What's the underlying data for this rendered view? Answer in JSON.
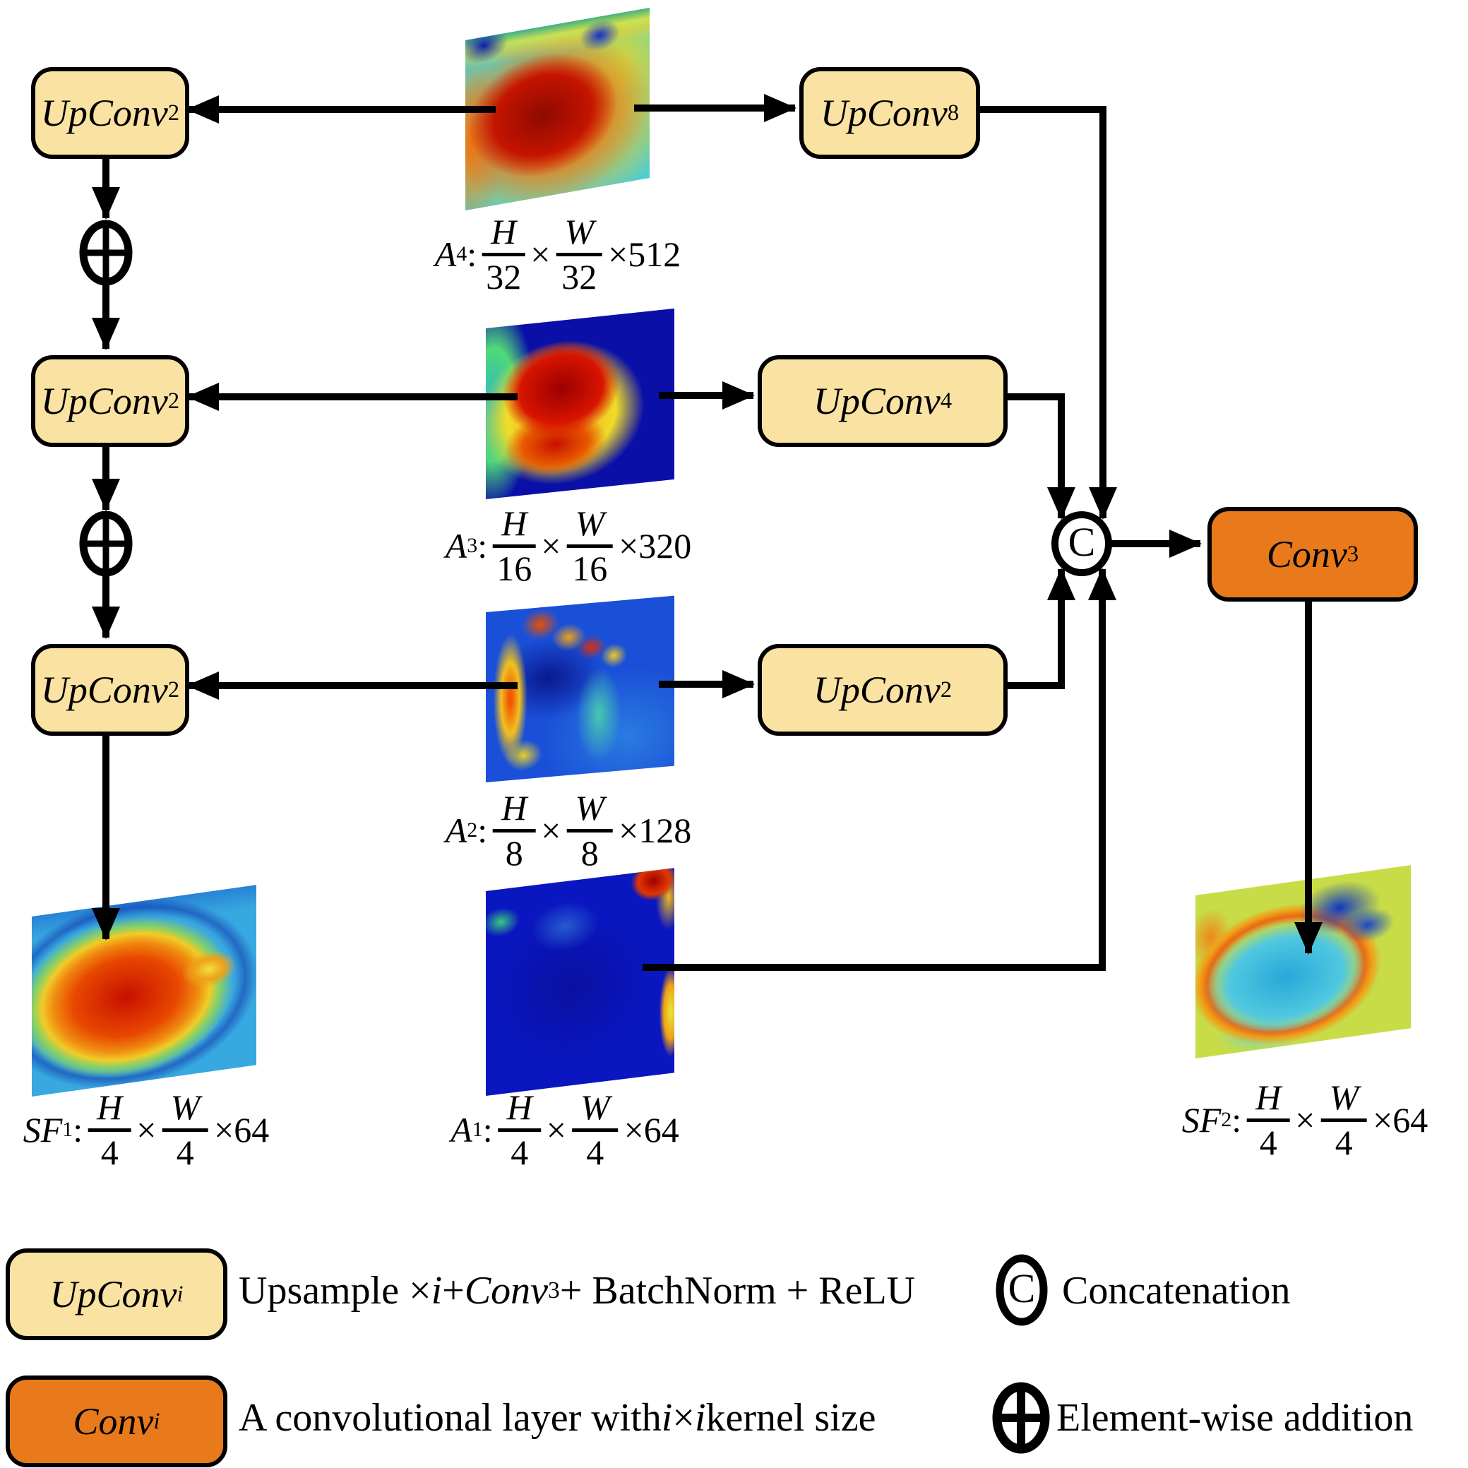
{
  "colors": {
    "node_fill": "#FAE2A2",
    "conv_fill": "#E87A1C",
    "line": "#000000",
    "bg": "#FFFFFF"
  },
  "nodes": {
    "upconv2": {
      "segments": [
        {
          "t": "it",
          "v": "UpConv"
        },
        {
          "t": "sub",
          "v": "2"
        }
      ]
    },
    "upconv4": {
      "segments": [
        {
          "t": "it",
          "v": "UpConv"
        },
        {
          "t": "sub",
          "v": "4"
        }
      ]
    },
    "upconv8": {
      "segments": [
        {
          "t": "it",
          "v": "UpConv"
        },
        {
          "t": "sub",
          "v": "8"
        }
      ]
    },
    "conv3": {
      "segments": [
        {
          "t": "it",
          "v": "Conv"
        },
        {
          "t": "sub",
          "v": "3"
        }
      ]
    }
  },
  "symbols": {
    "concat": "C"
  },
  "labels": {
    "a4": {
      "segments": [
        {
          "t": "it",
          "v": "A"
        },
        {
          "t": "sub",
          "v": "4"
        },
        {
          "t": "txt",
          "v": " : "
        },
        {
          "t": "frac",
          "n": "H",
          "d": "32"
        },
        {
          "t": "txt",
          "v": "×"
        },
        {
          "t": "frac",
          "n": "W",
          "d": "32"
        },
        {
          "t": "txt",
          "v": "×512"
        }
      ]
    },
    "a3": {
      "segments": [
        {
          "t": "it",
          "v": "A"
        },
        {
          "t": "sub",
          "v": "3"
        },
        {
          "t": "txt",
          "v": " : "
        },
        {
          "t": "frac",
          "n": "H",
          "d": "16"
        },
        {
          "t": "txt",
          "v": "×"
        },
        {
          "t": "frac",
          "n": "W",
          "d": "16"
        },
        {
          "t": "txt",
          "v": "×320"
        }
      ]
    },
    "a2": {
      "segments": [
        {
          "t": "it",
          "v": "A"
        },
        {
          "t": "sub",
          "v": "2"
        },
        {
          "t": "txt",
          "v": " : "
        },
        {
          "t": "frac",
          "n": "H",
          "d": "8"
        },
        {
          "t": "txt",
          "v": "×"
        },
        {
          "t": "frac",
          "n": "W",
          "d": "8"
        },
        {
          "t": "txt",
          "v": "×128"
        }
      ]
    },
    "a1": {
      "segments": [
        {
          "t": "it",
          "v": "A"
        },
        {
          "t": "sub",
          "v": "1"
        },
        {
          "t": "txt",
          "v": " : "
        },
        {
          "t": "frac",
          "n": "H",
          "d": "4"
        },
        {
          "t": "txt",
          "v": "×"
        },
        {
          "t": "frac",
          "n": "W",
          "d": "4"
        },
        {
          "t": "txt",
          "v": "×64"
        }
      ]
    },
    "sf1": {
      "segments": [
        {
          "t": "it",
          "v": "SF"
        },
        {
          "t": "sub",
          "v": "1"
        },
        {
          "t": "txt",
          "v": " : "
        },
        {
          "t": "frac",
          "n": "H",
          "d": "4"
        },
        {
          "t": "txt",
          "v": "×"
        },
        {
          "t": "frac",
          "n": "W",
          "d": "4"
        },
        {
          "t": "txt",
          "v": "×64"
        }
      ]
    },
    "sf2": {
      "segments": [
        {
          "t": "it",
          "v": "SF"
        },
        {
          "t": "sub",
          "v": "2"
        },
        {
          "t": "txt",
          "v": " : "
        },
        {
          "t": "frac",
          "n": "H",
          "d": "4"
        },
        {
          "t": "txt",
          "v": "×"
        },
        {
          "t": "frac",
          "n": "W",
          "d": "4"
        },
        {
          "t": "txt",
          "v": "×64"
        }
      ]
    }
  },
  "legend": {
    "upconv_box": {
      "segments": [
        {
          "t": "it",
          "v": "UpConv"
        },
        {
          "t": "subit",
          "v": "i"
        }
      ]
    },
    "upconv_desc": {
      "segments": [
        {
          "t": "txt",
          "v": "Upsample × "
        },
        {
          "t": "it",
          "v": "i"
        },
        {
          "t": "txt",
          "v": " + "
        },
        {
          "t": "it",
          "v": "Conv"
        },
        {
          "t": "sub",
          "v": "3"
        },
        {
          "t": "txt",
          "v": " + BatchNorm + ReLU"
        }
      ]
    },
    "conv_box": {
      "segments": [
        {
          "t": "it",
          "v": "Conv"
        },
        {
          "t": "subit",
          "v": "i"
        }
      ]
    },
    "conv_desc": {
      "segments": [
        {
          "t": "txt",
          "v": "A convolutional layer with "
        },
        {
          "t": "it",
          "v": "i"
        },
        {
          "t": "txt",
          "v": " × "
        },
        {
          "t": "it",
          "v": "i"
        },
        {
          "t": "txt",
          "v": " kernel size"
        }
      ]
    },
    "concat_symbol": "C",
    "concat_label": "Concatenation",
    "add_label": "Element-wise addition"
  }
}
